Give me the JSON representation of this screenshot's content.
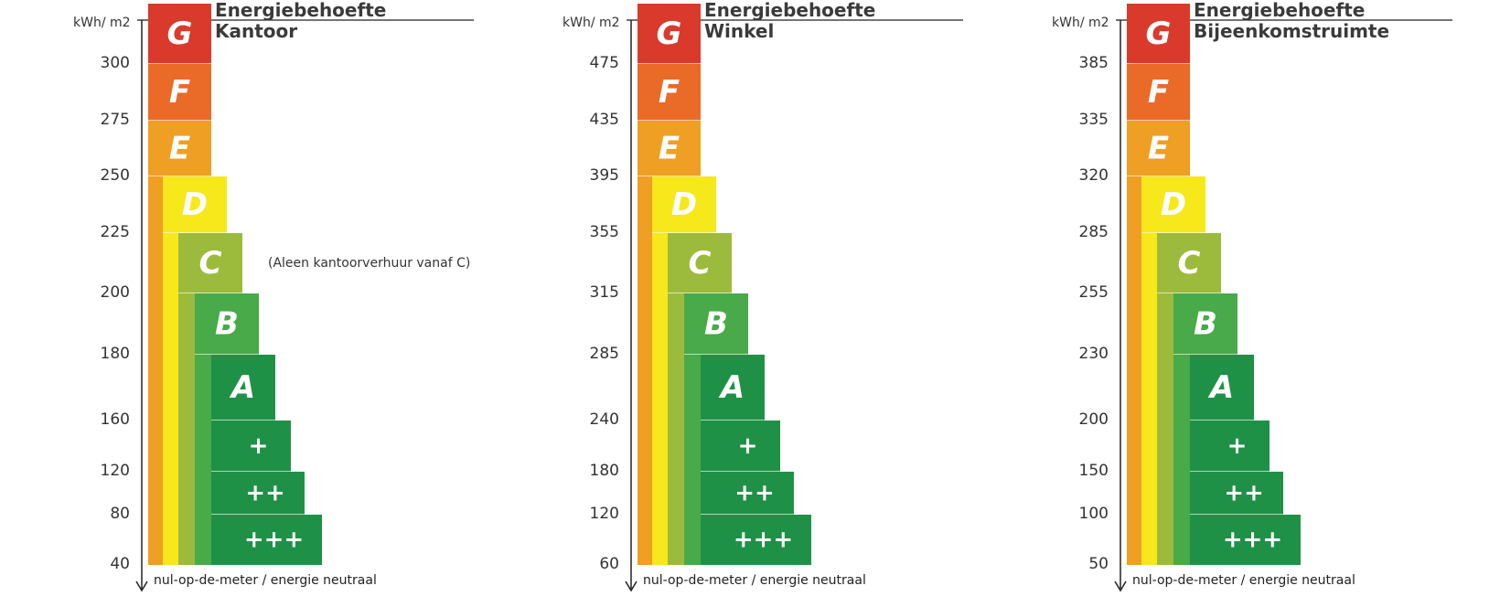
{
  "unit_label": "kWh/ m2",
  "footer_text": "nul-op-de-meter / energie neutraal",
  "classes": [
    "G",
    "F",
    "E",
    "D",
    "C",
    "B",
    "A",
    "+",
    "++",
    "+++"
  ],
  "class_colors": {
    "G": "#d93a2b",
    "F": "#ea6a28",
    "E": "#ee9f24",
    "D": "#f7e81b",
    "C": "#9cbb3c",
    "B": "#48aa48",
    "A": "#1f9146",
    "+": "#1f9146",
    "++": "#1f9146",
    "+++": "#1f9146"
  },
  "panels": [
    {
      "title_line1": "Energiebehoefte",
      "title_line2": "Kantoor",
      "ticks": [
        "300",
        "275",
        "250",
        "225",
        "200",
        "180",
        "160",
        "120",
        "80",
        "40"
      ],
      "note": "(Aleen kantoorverhuur vanaf C)"
    },
    {
      "title_line1": "Energiebehoefte",
      "title_line2": "Winkel",
      "ticks": [
        "475",
        "435",
        "395",
        "355",
        "315",
        "285",
        "240",
        "180",
        "120",
        "60"
      ],
      "note": ""
    },
    {
      "title_line1": "Energiebehoefte",
      "title_line2": "Bijeenkomstruimte",
      "ticks": [
        "385",
        "335",
        "320",
        "285",
        "255",
        "230",
        "200",
        "150",
        "100",
        "50"
      ],
      "note": ""
    }
  ]
}
